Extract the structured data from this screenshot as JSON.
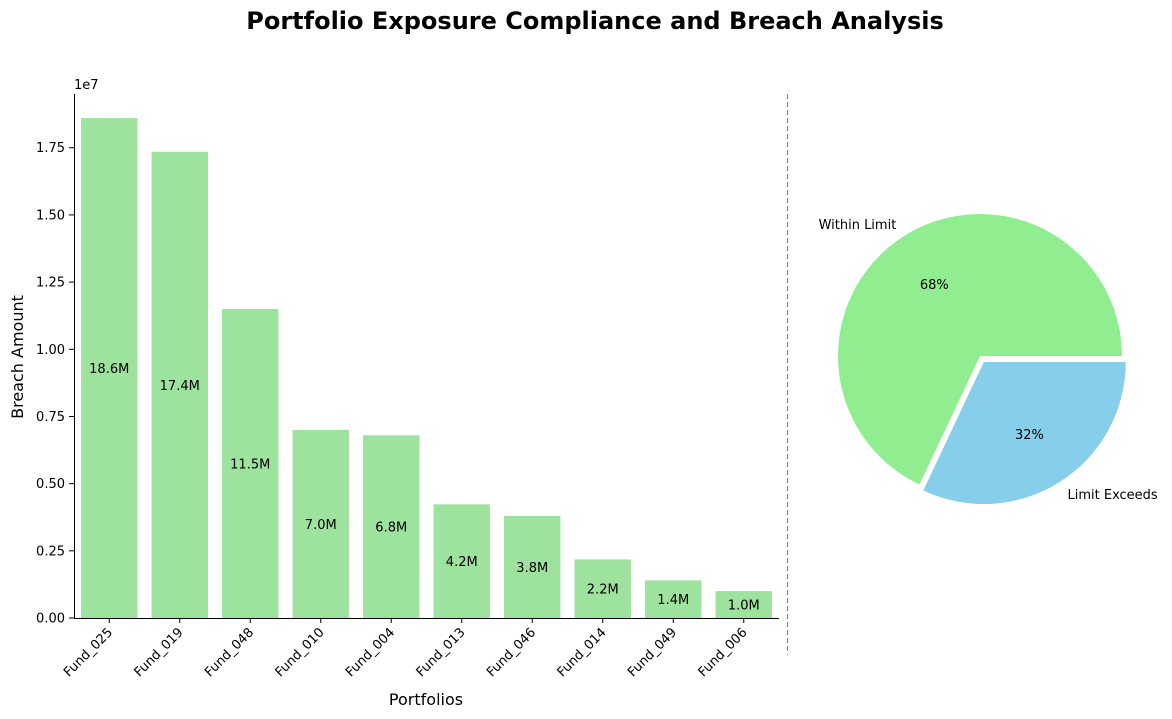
{
  "title": "Portfolio Exposure Compliance and Breach Analysis",
  "chart_data": [
    {
      "type": "bar",
      "categories": [
        "Fund_025",
        "Fund_019",
        "Fund_048",
        "Fund_010",
        "Fund_004",
        "Fund_013",
        "Fund_046",
        "Fund_014",
        "Fund_049",
        "Fund_006"
      ],
      "values": [
        18600000,
        17350000,
        11500000,
        7000000,
        6800000,
        4230000,
        3800000,
        2180000,
        1400000,
        1000000
      ],
      "data_labels": [
        "18.6M",
        "17.4M",
        "11.5M",
        "7.0M",
        "6.8M",
        "4.2M",
        "3.8M",
        "2.2M",
        "1.4M",
        "1.0M"
      ],
      "xlabel": "Portfolios",
      "ylabel": "Breach Amount",
      "ylim": [
        0,
        19500000
      ],
      "yticks": [
        0,
        2500000,
        5000000,
        7500000,
        10000000,
        12500000,
        15000000,
        17500000
      ],
      "ytick_labels": [
        "0.00",
        "0.25",
        "0.50",
        "0.75",
        "1.00",
        "1.25",
        "1.50",
        "1.75"
      ],
      "y_offset_label": "1e7",
      "bar_color": "#9de39d",
      "grid": false
    },
    {
      "type": "pie",
      "labels": [
        "Within Limit",
        "Limit Exceeds"
      ],
      "values": [
        68,
        32
      ],
      "pct_labels": [
        "68%",
        "32%"
      ],
      "colors": [
        "#90ee90",
        "#87ceeb"
      ],
      "exploded": "Limit Exceeds"
    }
  ]
}
